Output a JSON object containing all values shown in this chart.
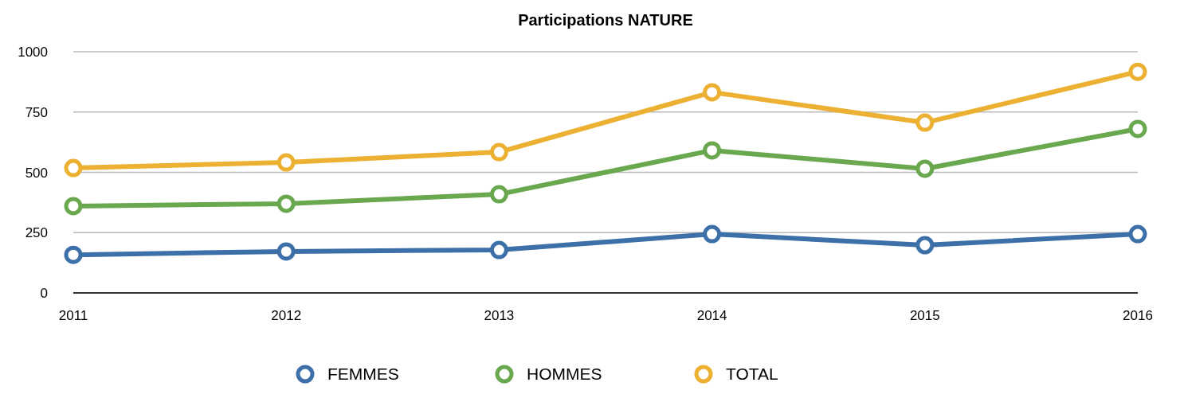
{
  "chart_data": {
    "type": "line",
    "title": "Participations NATURE",
    "categories": [
      "2011",
      "2012",
      "2013",
      "2014",
      "2015",
      "2016"
    ],
    "series": [
      {
        "name": "FEMMES",
        "color": "#3d6fa8",
        "values": [
          158,
          172,
          178,
          244,
          198,
          244
        ]
      },
      {
        "name": "HOMMES",
        "color": "#6aa84f",
        "values": [
          360,
          370,
          409,
          591,
          515,
          680
        ]
      },
      {
        "name": "TOTAL",
        "color": "#ecb033",
        "values": [
          518,
          541,
          584,
          832,
          706,
          917
        ]
      }
    ],
    "ylim": [
      0,
      1000
    ],
    "yticks": [
      0,
      250,
      500,
      750,
      1000
    ],
    "grid": "y",
    "legend": "bottom",
    "marker": "circle",
    "line_style": "solid"
  }
}
